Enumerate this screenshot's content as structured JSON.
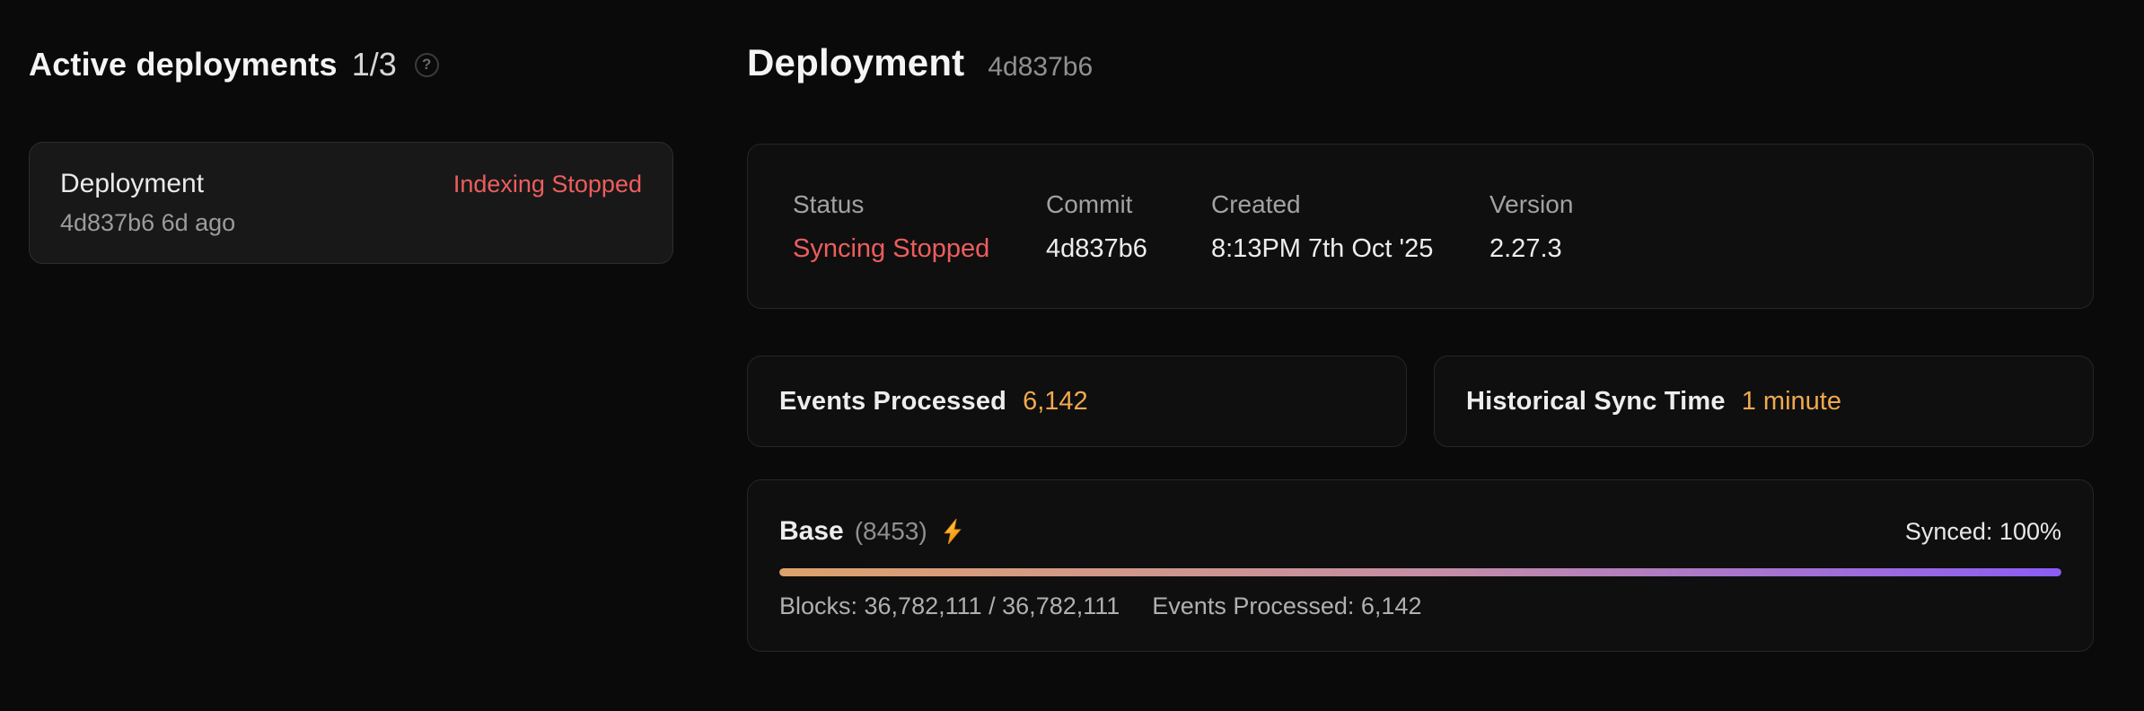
{
  "colors": {
    "accent_red": "#ee5d5d",
    "accent_amber": "#f0a94e",
    "progress_gradient_start": "#dda26c",
    "progress_gradient_mid": "#c48da6",
    "progress_gradient_end": "#8b5cf6"
  },
  "left_panel": {
    "title": "Active deployments",
    "count": "1/3",
    "help_icon_glyph": "?",
    "deployment_card": {
      "name": "Deployment",
      "status": "Indexing Stopped",
      "meta": "4d837b6 6d ago"
    }
  },
  "main": {
    "title": "Deployment",
    "hash": "4d837b6",
    "overview": {
      "fields": [
        {
          "label": "Status",
          "value": "Syncing Stopped"
        },
        {
          "label": "Commit",
          "value": "4d837b6"
        },
        {
          "label": "Created",
          "value": "8:13PM 7th Oct '25"
        },
        {
          "label": "Version",
          "value": "2.27.3"
        }
      ]
    },
    "metrics": [
      {
        "label": "Events Processed",
        "value": "6,142"
      },
      {
        "label": "Historical Sync Time",
        "value": "1 minute"
      }
    ],
    "chain": {
      "name": "Base",
      "chain_id": "(8453)",
      "bolt_icon": "lightning-bolt-icon",
      "synced_label": "Synced: 100%",
      "progress_percent": 100,
      "blocks_label": "Blocks: 36,782,111 / 36,782,111",
      "events_label": "Events Processed: 6,142"
    }
  }
}
